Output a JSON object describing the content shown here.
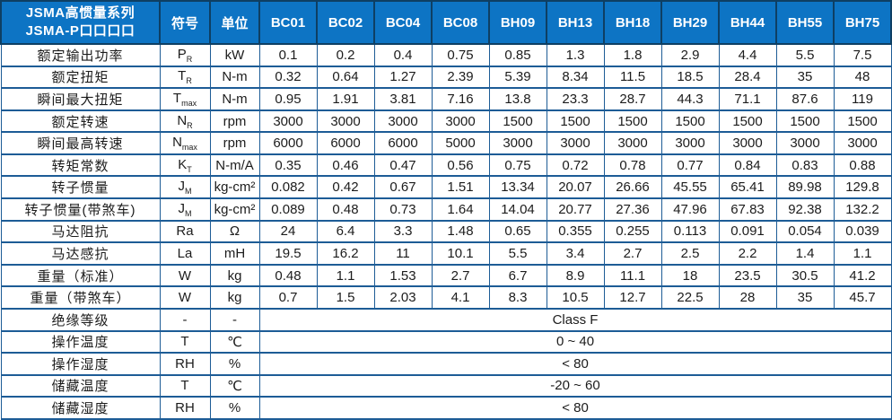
{
  "table": {
    "title_line1": "JSMA高惯量系列",
    "title_line2": "JSMA-P口口口口",
    "symbol_header": "符号",
    "unit_header": "单位",
    "models": [
      "BC01",
      "BC02",
      "BC04",
      "BC08",
      "BH09",
      "BH13",
      "BH18",
      "BH29",
      "BH44",
      "BH55",
      "BH75"
    ],
    "rows": [
      {
        "label": "额定输出功率",
        "symbol": "P",
        "sub": "R",
        "unit": "kW",
        "values": [
          "0.1",
          "0.2",
          "0.4",
          "0.75",
          "0.85",
          "1.3",
          "1.8",
          "2.9",
          "4.4",
          "5.5",
          "7.5"
        ]
      },
      {
        "label": "额定扭矩",
        "symbol": "T",
        "sub": "R",
        "unit": "N-m",
        "values": [
          "0.32",
          "0.64",
          "1.27",
          "2.39",
          "5.39",
          "8.34",
          "11.5",
          "18.5",
          "28.4",
          "35",
          "48"
        ]
      },
      {
        "label": "瞬间最大扭矩",
        "symbol": "T",
        "sub": "max",
        "unit": "N-m",
        "values": [
          "0.95",
          "1.91",
          "3.81",
          "7.16",
          "13.8",
          "23.3",
          "28.7",
          "44.3",
          "71.1",
          "87.6",
          "119"
        ]
      },
      {
        "label": "额定转速",
        "symbol": "N",
        "sub": "R",
        "unit": "rpm",
        "values": [
          "3000",
          "3000",
          "3000",
          "3000",
          "1500",
          "1500",
          "1500",
          "1500",
          "1500",
          "1500",
          "1500"
        ]
      },
      {
        "label": "瞬间最高转速",
        "symbol": "N",
        "sub": "max",
        "unit": "rpm",
        "values": [
          "6000",
          "6000",
          "6000",
          "5000",
          "3000",
          "3000",
          "3000",
          "3000",
          "3000",
          "3000",
          "3000"
        ]
      },
      {
        "label": "转矩常数",
        "symbol": "K",
        "sub": "T",
        "unit": "N-m/A",
        "values": [
          "0.35",
          "0.46",
          "0.47",
          "0.56",
          "0.75",
          "0.72",
          "0.78",
          "0.77",
          "0.84",
          "0.83",
          "0.88"
        ]
      },
      {
        "label": "转子惯量",
        "symbol": "J",
        "sub": "M",
        "unit": "kg-cm²",
        "values": [
          "0.082",
          "0.42",
          "0.67",
          "1.51",
          "13.34",
          "20.07",
          "26.66",
          "45.55",
          "65.41",
          "89.98",
          "129.8"
        ]
      },
      {
        "label": "转子惯量(带煞车)",
        "symbol": "J",
        "sub": "M",
        "unit": "kg-cm²",
        "values": [
          "0.089",
          "0.48",
          "0.73",
          "1.64",
          "14.04",
          "20.77",
          "27.36",
          "47.96",
          "67.83",
          "92.38",
          "132.2"
        ]
      },
      {
        "label": "马达阻抗",
        "symbol": "Ra",
        "sub": "",
        "unit": "Ω",
        "values": [
          "24",
          "6.4",
          "3.3",
          "1.48",
          "0.65",
          "0.355",
          "0.255",
          "0.113",
          "0.091",
          "0.054",
          "0.039"
        ]
      },
      {
        "label": "马达感抗",
        "symbol": "La",
        "sub": "",
        "unit": "mH",
        "values": [
          "19.5",
          "16.2",
          "11",
          "10.1",
          "5.5",
          "3.4",
          "2.7",
          "2.5",
          "2.2",
          "1.4",
          "1.1"
        ]
      },
      {
        "label": "重量（标准）",
        "symbol": "W",
        "sub": "",
        "unit": "kg",
        "values": [
          "0.48",
          "1.1",
          "1.53",
          "2.7",
          "6.7",
          "8.9",
          "11.1",
          "18",
          "23.5",
          "30.5",
          "41.2"
        ]
      },
      {
        "label": "重量（带煞车）",
        "symbol": "W",
        "sub": "",
        "unit": "kg",
        "values": [
          "0.7",
          "1.5",
          "2.03",
          "4.1",
          "8.3",
          "10.5",
          "12.7",
          "22.5",
          "28",
          "35",
          "45.7"
        ]
      },
      {
        "label": "绝缘等级",
        "symbol": "-",
        "sub": "",
        "unit": "-",
        "span_value": "Class F"
      },
      {
        "label": "操作温度",
        "symbol": "T",
        "sub": "",
        "unit": "℃",
        "span_value": "0 ~ 40"
      },
      {
        "label": "操作湿度",
        "symbol": "RH",
        "sub": "",
        "unit": "%",
        "span_value": "< 80"
      },
      {
        "label": "储藏温度",
        "symbol": "T",
        "sub": "",
        "unit": "℃",
        "span_value": "-20 ~ 60"
      },
      {
        "label": "储藏湿度",
        "symbol": "RH",
        "sub": "",
        "unit": "%",
        "span_value": "< 80"
      }
    ]
  },
  "colors": {
    "header_bg": "#0d74c4",
    "header_line": "#0e3f63",
    "grid": "#1d5c96",
    "text": "#1c1c1c"
  }
}
